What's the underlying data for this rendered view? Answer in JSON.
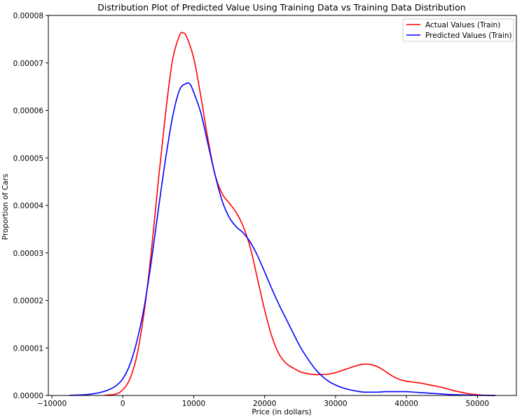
{
  "chart_data": {
    "type": "line",
    "title": "Distribution  Plot of  Predicted Value Using Training Data vs Training Data Distribution",
    "xlabel": "Price (in dollars)",
    "ylabel": "Proportion of Cars",
    "xlim": [
      -10500,
      55500
    ],
    "ylim": [
      0,
      8e-05
    ],
    "xticks": [
      -10000,
      0,
      10000,
      20000,
      30000,
      40000,
      50000
    ],
    "xtick_labels": [
      "−10000",
      "0",
      "10000",
      "20000",
      "30000",
      "40000",
      "50000"
    ],
    "yticks": [
      0,
      1e-05,
      2e-05,
      3e-05,
      4e-05,
      5e-05,
      6e-05,
      7e-05,
      8e-05
    ],
    "ytick_labels": [
      "0.00000",
      "0.00001",
      "0.00002",
      "0.00003",
      "0.00004",
      "0.00005",
      "0.00006",
      "0.00007",
      "0.00008"
    ],
    "grid": false,
    "legend_position": "top-right",
    "series": [
      {
        "name": "Actual Values (Train)",
        "color": "#ff0000",
        "x": [
          -2500,
          -1000,
          0,
          1000,
          2000,
          3000,
          4000,
          5000,
          6000,
          7000,
          8000,
          8500,
          9000,
          10000,
          11000,
          12000,
          13000,
          14000,
          15000,
          16000,
          17000,
          18000,
          19000,
          20000,
          21000,
          22000,
          23000,
          24000,
          25000,
          26000,
          27000,
          28000,
          29000,
          30000,
          31000,
          32000,
          33000,
          34000,
          35000,
          36000,
          37000,
          38000,
          39000,
          40000,
          41000,
          42000,
          43000,
          44000,
          45000,
          46000,
          47000,
          48000,
          49000,
          50000,
          51000,
          52500
        ],
        "y": [
          5e-08,
          3e-07,
          1.2e-06,
          3.5e-06,
          8.5e-06,
          1.75e-05,
          3e-05,
          4.5e-05,
          5.9e-05,
          7.05e-05,
          7.58e-05,
          7.63e-05,
          7.55e-05,
          7.1e-05,
          6.3e-05,
          5.4e-05,
          4.65e-05,
          4.25e-05,
          4.05e-05,
          3.85e-05,
          3.55e-05,
          3.1e-05,
          2.45e-05,
          1.8e-05,
          1.25e-05,
          8.8e-06,
          6.8e-06,
          5.8e-06,
          5e-06,
          4.6e-06,
          4.4e-06,
          4.4e-06,
          4.5e-06,
          4.8e-06,
          5.3e-06,
          5.8e-06,
          6.3e-06,
          6.6e-06,
          6.5e-06,
          6e-06,
          5.1e-06,
          4.1e-06,
          3.4e-06,
          3e-06,
          2.8e-06,
          2.6e-06,
          2.3e-06,
          2e-06,
          1.7e-06,
          1.3e-06,
          9e-07,
          6e-07,
          3e-07,
          1.5e-07,
          5e-08,
          1e-08
        ]
      },
      {
        "name": "Predicted Values (Train)",
        "color": "#0000ff",
        "x": [
          -7500,
          -6000,
          -5000,
          -4000,
          -3000,
          -2000,
          -1000,
          0,
          1000,
          2000,
          3000,
          4000,
          5000,
          6000,
          7000,
          8000,
          9000,
          9500,
          10000,
          11000,
          12000,
          13000,
          14000,
          15000,
          16000,
          17000,
          18000,
          19000,
          20000,
          21000,
          22000,
          23000,
          24000,
          25000,
          26000,
          27000,
          28000,
          29000,
          30000,
          31000,
          32000,
          33000,
          34000,
          35000,
          36000,
          37000,
          38000,
          39000,
          40000,
          41000,
          42000,
          43000,
          44000,
          45000,
          46000,
          47000,
          48000,
          49000,
          50000,
          51000,
          52500
        ],
        "y": [
          3e-08,
          1e-07,
          2e-07,
          4e-07,
          7e-07,
          1.2e-06,
          2e-06,
          3.5e-06,
          6.5e-06,
          1.15e-05,
          1.85e-05,
          2.8e-05,
          3.9e-05,
          4.95e-05,
          5.85e-05,
          6.43e-05,
          6.57e-05,
          6.55e-05,
          6.38e-05,
          5.95e-05,
          5.3e-05,
          4.65e-05,
          4.1e-05,
          3.75e-05,
          3.55e-05,
          3.42e-05,
          3.22e-05,
          2.94e-05,
          2.6e-05,
          2.25e-05,
          1.92e-05,
          1.62e-05,
          1.32e-05,
          1.03e-05,
          7.9e-06,
          5.8e-06,
          4.2e-06,
          3e-06,
          2.2e-06,
          1.6e-06,
          1.2e-06,
          9e-07,
          7e-07,
          7e-07,
          7e-07,
          8e-07,
          8e-07,
          8e-07,
          8e-07,
          7e-07,
          6e-07,
          5e-07,
          4e-07,
          3e-07,
          2e-07,
          1.5e-07,
          1e-07,
          6e-08,
          3e-08,
          2e-08,
          1e-08
        ]
      }
    ]
  }
}
